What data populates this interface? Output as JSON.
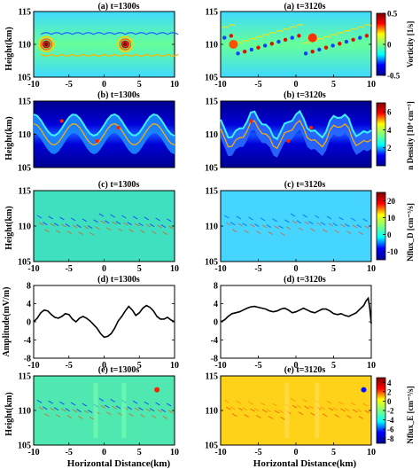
{
  "figure": {
    "xlabel": "Horizontal Distance(km)",
    "colormap": [
      "#00008f",
      "#0000ff",
      "#00ffff",
      "#7fff7f",
      "#ffff00",
      "#ff0000",
      "#800000"
    ],
    "rows": [
      {
        "row_label": "vorticity",
        "ylabel": "Height(km)",
        "yticks": [
          105,
          110,
          115
        ],
        "colorbar_label": "Vorticity [1/s]",
        "colorbar_ticks": [
          -0.5,
          0,
          0.5
        ]
      },
      {
        "row_label": "density",
        "ylabel": "Height(km)",
        "yticks": [
          105,
          110,
          115
        ],
        "colorbar_label": "n Density [10⁴ cm⁻³]",
        "colorbar_ticks": [
          2,
          4,
          6
        ]
      },
      {
        "row_label": "nflux-d",
        "ylabel": "Height(km)",
        "yticks": [
          105,
          110,
          115
        ],
        "colorbar_label": "Nflux_D [cm⁻³/s]",
        "colorbar_ticks": [
          -10,
          0,
          10,
          20
        ]
      },
      {
        "row_label": "amplitude",
        "ylabel": "Amplitude(mV/m)",
        "yticks": [
          -8,
          -4,
          0,
          4,
          8
        ]
      },
      {
        "row_label": "nflux-e",
        "ylabel": "Height(km)",
        "yticks": [
          105,
          110,
          115
        ],
        "colorbar_label": "Nflux_E [cm⁻³/s]",
        "colorbar_ticks": [
          -8,
          -6,
          -4,
          -2,
          0,
          2,
          4
        ]
      }
    ]
  },
  "chart_data": [
    {
      "type": "heatmap",
      "title": "(a) t=1300s",
      "xlabel": "",
      "ylabel": "Height(km)",
      "xlim": [
        -10,
        10
      ],
      "ylim": [
        105,
        115
      ],
      "xticks": [
        -10,
        -5,
        0,
        5,
        10
      ],
      "colorbar_range": [
        -0.5,
        0.5
      ]
    },
    {
      "type": "heatmap",
      "title": "(a) t=3120s",
      "xlabel": "",
      "ylabel": "",
      "xlim": [
        -10,
        10
      ],
      "ylim": [
        105,
        115
      ],
      "xticks": [
        -10,
        -5,
        0,
        5,
        10
      ],
      "colorbar_range": [
        -0.5,
        0.5
      ]
    },
    {
      "type": "heatmap",
      "title": "(b) t=1300s",
      "xlabel": "",
      "ylabel": "Height(km)",
      "xlim": [
        -10,
        10
      ],
      "ylim": [
        105,
        115
      ],
      "xticks": [],
      "colorbar_range": [
        0,
        7
      ]
    },
    {
      "type": "heatmap",
      "title": "(b) t=3120s",
      "xlabel": "",
      "ylabel": "",
      "xlim": [
        -10,
        10
      ],
      "ylim": [
        105,
        115
      ],
      "xticks": [],
      "colorbar_range": [
        0,
        7
      ]
    },
    {
      "type": "heatmap",
      "title": "(c) t=1300s",
      "xlabel": "",
      "ylabel": "Height(km)",
      "xlim": [
        -10,
        10
      ],
      "ylim": [
        105,
        115
      ],
      "xticks": [
        -10,
        -5,
        0,
        5,
        10
      ],
      "colorbar_range": [
        -15,
        25
      ]
    },
    {
      "type": "heatmap",
      "title": "(c) t=3120s",
      "xlabel": "",
      "ylabel": "",
      "xlim": [
        -10,
        10
      ],
      "ylim": [
        105,
        115
      ],
      "xticks": [
        -10,
        -5,
        0,
        5,
        10
      ],
      "colorbar_range": [
        -15,
        25
      ]
    },
    {
      "type": "line",
      "title": "(d) t=1300s",
      "xlabel": "",
      "ylabel": "Amplitude(mV/m)",
      "xlim": [
        -10,
        10
      ],
      "ylim": [
        -8,
        8
      ],
      "xticks": [
        -10,
        -5,
        0,
        5,
        10
      ],
      "x": [
        -10,
        -9.5,
        -9,
        -8.5,
        -8,
        -7.5,
        -7,
        -6.5,
        -6,
        -5.5,
        -5,
        -4.5,
        -4,
        -3.5,
        -3,
        -2.5,
        -2,
        -1.5,
        -1,
        -0.5,
        0,
        0.5,
        1,
        1.5,
        2,
        2.5,
        3,
        3.5,
        4,
        4.5,
        5,
        5.5,
        6,
        6.5,
        7,
        7.5,
        8,
        8.5,
        9,
        9.5,
        10
      ],
      "y": [
        0.0,
        0.8,
        2.0,
        2.6,
        2.4,
        1.6,
        1.0,
        0.8,
        1.2,
        1.8,
        1.6,
        0.6,
        0.0,
        0.8,
        1.2,
        0.8,
        0.2,
        -0.6,
        -1.4,
        -2.6,
        -3.4,
        -3.2,
        -2.6,
        -1.4,
        0.2,
        1.2,
        2.4,
        3.4,
        2.6,
        1.4,
        2.0,
        3.0,
        3.6,
        3.2,
        2.4,
        1.2,
        0.6,
        0.6,
        1.0,
        0.4,
        0.0
      ]
    },
    {
      "type": "line",
      "title": "(d) t=3120s",
      "xlabel": "",
      "ylabel": "",
      "xlim": [
        -10,
        10
      ],
      "ylim": [
        -8,
        8
      ],
      "xticks": [
        -10,
        -5,
        0,
        5,
        10
      ],
      "x": [
        -10,
        -9.5,
        -9,
        -8.5,
        -8,
        -7.5,
        -7,
        -6.5,
        -6,
        -5.5,
        -5,
        -4.5,
        -4,
        -3.5,
        -3,
        -2.5,
        -2,
        -1.5,
        -1,
        -0.5,
        0,
        0.5,
        1,
        1.5,
        2,
        2.5,
        3,
        3.5,
        4,
        4.5,
        5,
        5.5,
        6,
        6.5,
        7,
        7.5,
        8,
        8.5,
        9,
        9.3,
        9.6,
        9.8,
        10
      ],
      "y": [
        0.0,
        0.4,
        1.2,
        1.8,
        2.0,
        2.2,
        2.6,
        3.0,
        3.3,
        3.4,
        3.2,
        3.0,
        2.8,
        2.4,
        2.2,
        2.4,
        2.8,
        3.0,
        2.6,
        2.0,
        2.2,
        2.6,
        3.0,
        2.6,
        2.2,
        2.0,
        2.4,
        2.8,
        2.8,
        2.4,
        1.8,
        1.6,
        1.8,
        1.4,
        1.2,
        1.6,
        2.0,
        2.8,
        3.6,
        4.6,
        5.2,
        3.0,
        -0.4
      ]
    },
    {
      "type": "heatmap",
      "title": "(e) t=1300s",
      "xlabel": "Horizontal Distance(km)",
      "ylabel": "Height(km)",
      "xlim": [
        -10,
        10
      ],
      "ylim": [
        105,
        115
      ],
      "xticks": [
        -10,
        -5,
        0,
        5,
        10
      ],
      "colorbar_range": [
        -7,
        7
      ]
    },
    {
      "type": "heatmap",
      "title": "(e) t=3120s",
      "xlabel": "Horizontal Distance(km)",
      "ylabel": "",
      "xlim": [
        -10,
        10
      ],
      "ylim": [
        105,
        115
      ],
      "xticks": [
        -10,
        -5,
        0,
        5,
        10
      ],
      "colorbar_range": [
        -9,
        5
      ]
    }
  ]
}
